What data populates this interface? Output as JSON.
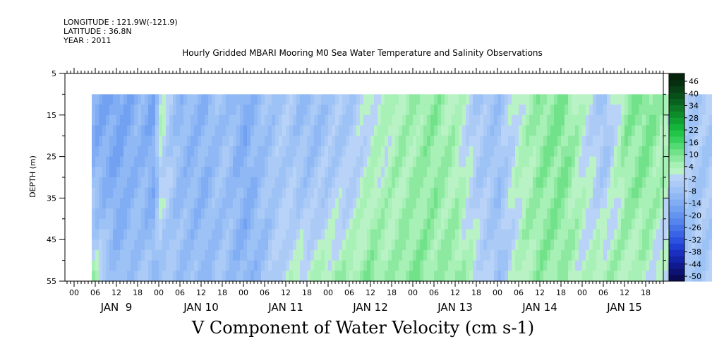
{
  "header": {
    "longitude": "LONGITUDE : 121.9W(-121.9)",
    "latitude": "LATITUDE : 36.8N",
    "year": "YEAR : 2011"
  },
  "chart_data": {
    "type": "heatmap",
    "title": "Hourly Gridded MBARI Mooring M0 Sea Water Temperature and Salinity Observations",
    "xlabel": "V Component of Water Velocity (cm s-1)",
    "ylabel": "DEPTH (m)",
    "ylim": [
      55,
      5
    ],
    "y_ticks": [
      "5",
      "15",
      "25",
      "35",
      "45",
      "55"
    ],
    "x_hour_ticks": [
      "00",
      "06",
      "12",
      "18",
      "00",
      "06",
      "12",
      "18",
      "00",
      "06",
      "12",
      "18",
      "00",
      "06",
      "12",
      "18",
      "00",
      "06",
      "12",
      "18",
      "00",
      "06",
      "12",
      "18",
      "00",
      "06",
      "12",
      "18"
    ],
    "x_day_labels": [
      "JAN  9",
      "JAN 10",
      "JAN 11",
      "JAN 12",
      "JAN 13",
      "JAN 14",
      "JAN 15"
    ],
    "data_depth_range": [
      10,
      55
    ],
    "colorbar": {
      "labels": [
        "46",
        "40",
        "34",
        "28",
        "22",
        "16",
        "10",
        "4",
        "-2",
        "-8",
        "-14",
        "-20",
        "-26",
        "-32",
        "-38",
        "-44",
        "-50"
      ],
      "levels": [
        -50,
        -47,
        -44,
        -41,
        -38,
        -35,
        -32,
        -29,
        -26,
        -23,
        -20,
        -17,
        -14,
        -11,
        -8,
        -5,
        -2,
        1,
        4,
        7,
        10,
        13,
        16,
        19,
        22,
        25,
        28,
        31,
        34,
        37,
        40,
        43,
        46,
        49
      ],
      "colors": [
        "#0b0b55",
        "#0d1273",
        "#101a8e",
        "#1424a8",
        "#1a2fc0",
        "#2040d4",
        "#2c52e0",
        "#3a63e6",
        "#4874ea",
        "#5685ee",
        "#6494f0",
        "#72a1f2",
        "#80adf3",
        "#8fb8f4",
        "#9dc2f5",
        "#abcbf6",
        "#b8d3f7",
        "#b9f2c4",
        "#a7f0b6",
        "#8ee9a0",
        "#72e28a",
        "#54da72",
        "#38d05c",
        "#22c548",
        "#14b53a",
        "#10a132",
        "#0e8c2b",
        "#0c7725",
        "#0a621f",
        "#094f19",
        "#083f14",
        "#062f0f",
        "#05240b"
      ]
    },
    "v_field_profile": {
      "times_hours": [
        5,
        12,
        18,
        22,
        24,
        29,
        36,
        42,
        48,
        54,
        60,
        66,
        72,
        78,
        84,
        90,
        96,
        102,
        108,
        114,
        120,
        126,
        132,
        138,
        144,
        150,
        156,
        162,
        168,
        174,
        180,
        186,
        192,
        197
      ],
      "surface_v": [
        -12,
        -14,
        -10,
        -13,
        2,
        -8,
        -10,
        -6,
        -12,
        -6,
        -4,
        -8,
        -5,
        -4,
        2,
        4,
        6,
        8,
        4,
        -4,
        -6,
        3,
        8,
        10,
        2,
        -6,
        8,
        10,
        4,
        -4,
        -4,
        -3,
        2,
        6
      ],
      "bottom_v": [
        6,
        -8,
        -4,
        -6,
        -6,
        -6,
        -8,
        -6,
        -10,
        -6,
        2,
        4,
        6,
        8,
        10,
        6,
        10,
        6,
        8,
        2,
        -6,
        4,
        8,
        6,
        2,
        8,
        4,
        2,
        -4,
        -6,
        -2,
        -4,
        -2,
        -6
      ]
    }
  }
}
